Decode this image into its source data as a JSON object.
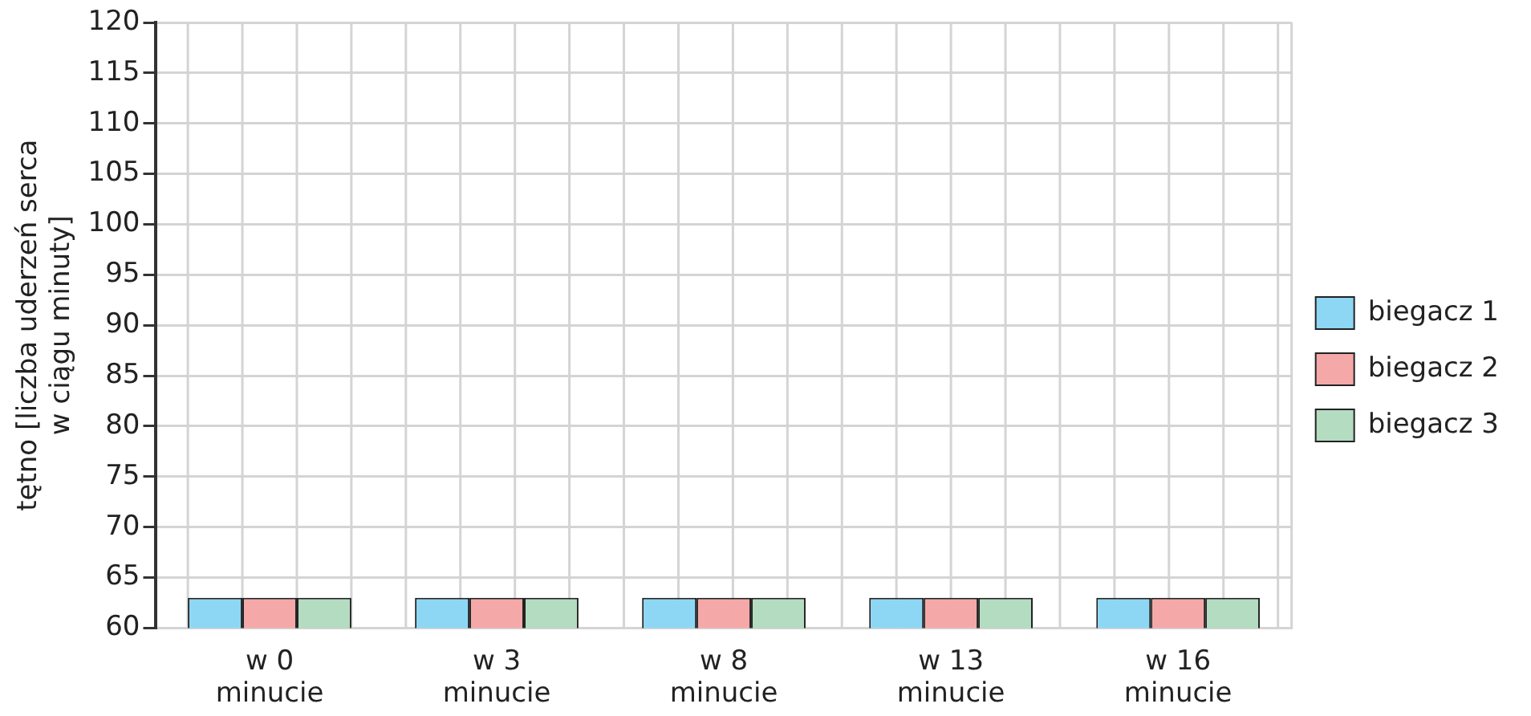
{
  "chart_data": {
    "type": "bar",
    "ylabel": "tętno [liczba uderzeń serca w ciągu minuty]",
    "categories": [
      "w 0 minucie",
      "w 3 minucie",
      "w 8 minucie",
      "w 13 minucie",
      "w 16 minucie"
    ],
    "series": [
      {
        "name": "biegacz 1",
        "color": "#8dd7f5",
        "values": [
          63,
          63,
          63,
          63,
          63
        ]
      },
      {
        "name": "biegacz 2",
        "color": "#f5a8a8",
        "values": [
          63,
          63,
          63,
          63,
          63
        ]
      },
      {
        "name": "biegacz 3",
        "color": "#b3dcc0",
        "values": [
          63,
          63,
          63,
          63,
          63
        ]
      }
    ],
    "ylim": [
      60,
      120
    ],
    "yticks": [
      60,
      65,
      70,
      75,
      80,
      85,
      90,
      95,
      100,
      105,
      110,
      115,
      120
    ],
    "grid": true,
    "legend": "right"
  }
}
